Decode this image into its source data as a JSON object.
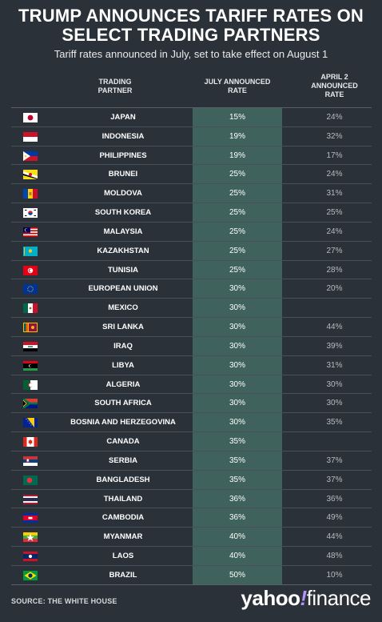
{
  "title_line1": "TRUMP ANNOUNCES TARIFF RATES ON",
  "title_line2": "SELECT TRADING PARTNERS",
  "subtitle": "Tariff rates announced in July, set to take effect on August 1",
  "headers": {
    "partner_1": "TRADING",
    "partner_2": "PARTNER",
    "july_1": "JULY ANNOUNCED",
    "july_2": "RATE",
    "april_1": "APRIL 2",
    "april_2": "ANNOUNCED",
    "april_3": "RATE"
  },
  "source": "SOURCE: THE WHITE HOUSE",
  "logo": {
    "yahoo": "yahoo",
    "slash": "!",
    "finance": "finance"
  },
  "colors": {
    "background": "#2b3138",
    "highlight_column": "#3f625d",
    "logo_accent": "#b493ff"
  },
  "chart_data": {
    "type": "table",
    "title": "TRUMP ANNOUNCES TARIFF RATES ON SELECT TRADING PARTNERS",
    "subtitle": "Tariff rates announced in July, set to take effect on August 1",
    "columns": [
      "TRADING PARTNER",
      "JULY ANNOUNCED RATE",
      "APRIL 2 ANNOUNCED RATE"
    ],
    "rows": [
      {
        "country": "JAPAN",
        "flag": "japan-flag-icon",
        "july": "15%",
        "april": "24%"
      },
      {
        "country": "INDONESIA",
        "flag": "indonesia-flag-icon",
        "july": "19%",
        "april": "32%"
      },
      {
        "country": "PHILIPPINES",
        "flag": "philippines-flag-icon",
        "july": "19%",
        "april": "17%"
      },
      {
        "country": "BRUNEI",
        "flag": "brunei-flag-icon",
        "july": "25%",
        "april": "24%"
      },
      {
        "country": "MOLDOVA",
        "flag": "moldova-flag-icon",
        "july": "25%",
        "april": "31%"
      },
      {
        "country": "SOUTH KOREA",
        "flag": "south-korea-flag-icon",
        "july": "25%",
        "april": "25%"
      },
      {
        "country": "MALAYSIA",
        "flag": "malaysia-flag-icon",
        "july": "25%",
        "april": "24%"
      },
      {
        "country": "KAZAKHSTAN",
        "flag": "kazakhstan-flag-icon",
        "july": "25%",
        "april": "27%"
      },
      {
        "country": "TUNISIA",
        "flag": "tunisia-flag-icon",
        "july": "25%",
        "april": "28%"
      },
      {
        "country": "EUROPEAN UNION",
        "flag": "eu-flag-icon",
        "july": "30%",
        "april": "20%"
      },
      {
        "country": "MEXICO",
        "flag": "mexico-flag-icon",
        "july": "30%",
        "april": ""
      },
      {
        "country": "SRI LANKA",
        "flag": "sri-lanka-flag-icon",
        "july": "30%",
        "april": "44%"
      },
      {
        "country": "IRAQ",
        "flag": "iraq-flag-icon",
        "july": "30%",
        "april": "39%"
      },
      {
        "country": "LIBYA",
        "flag": "libya-flag-icon",
        "july": "30%",
        "april": "31%"
      },
      {
        "country": "ALGERIA",
        "flag": "algeria-flag-icon",
        "july": "30%",
        "april": "30%"
      },
      {
        "country": "SOUTH AFRICA",
        "flag": "south-africa-flag-icon",
        "july": "30%",
        "april": "30%"
      },
      {
        "country": "BOSNIA AND HERZEGOVINA",
        "flag": "bosnia-flag-icon",
        "july": "30%",
        "april": "35%"
      },
      {
        "country": "CANADA",
        "flag": "canada-flag-icon",
        "july": "35%",
        "april": ""
      },
      {
        "country": "SERBIA",
        "flag": "serbia-flag-icon",
        "july": "35%",
        "april": "37%"
      },
      {
        "country": "BANGLADESH",
        "flag": "bangladesh-flag-icon",
        "july": "35%",
        "april": "37%"
      },
      {
        "country": "THAILAND",
        "flag": "thailand-flag-icon",
        "july": "36%",
        "april": "36%"
      },
      {
        "country": "CAMBODIA",
        "flag": "cambodia-flag-icon",
        "july": "36%",
        "april": "49%"
      },
      {
        "country": "MYANMAR",
        "flag": "myanmar-flag-icon",
        "july": "40%",
        "april": "44%"
      },
      {
        "country": "LAOS",
        "flag": "laos-flag-icon",
        "july": "40%",
        "april": "48%"
      },
      {
        "country": "BRAZIL",
        "flag": "brazil-flag-icon",
        "july": "50%",
        "april": "10%"
      }
    ]
  }
}
